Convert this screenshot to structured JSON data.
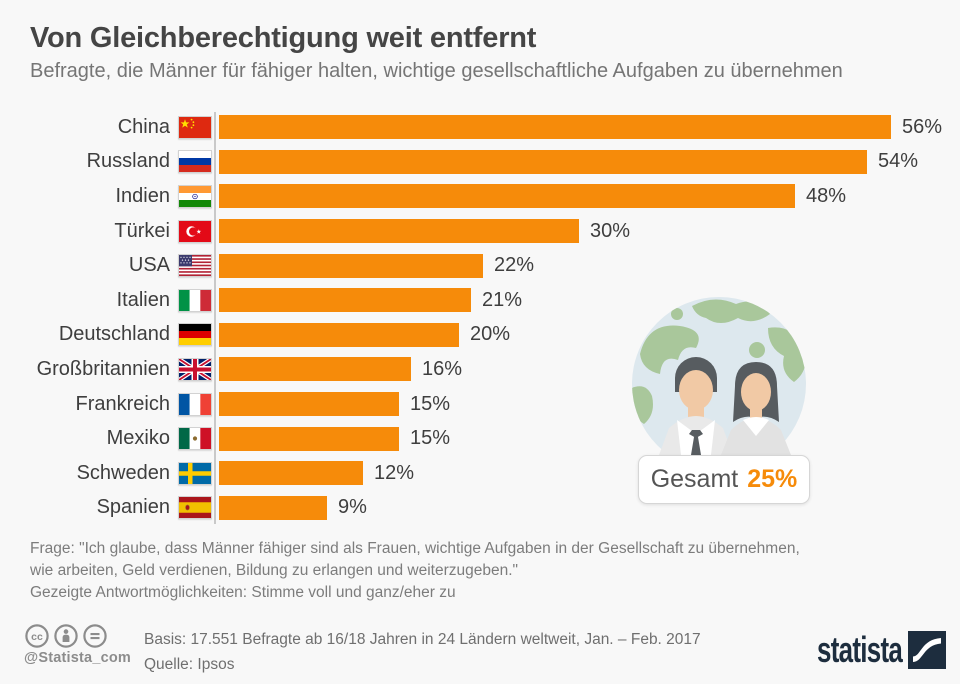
{
  "header": {
    "title": "Von Gleichberechtigung weit entfernt",
    "subtitle": "Befragte, die Männer für fähiger halten, wichtige gesellschaftliche Aufgaben zu übernehmen"
  },
  "chart_data": {
    "type": "bar",
    "orientation": "horizontal",
    "title": "Von Gleichberechtigung weit entfernt",
    "unit": "%",
    "categories": [
      "China",
      "Russland",
      "Indien",
      "Türkei",
      "USA",
      "Italien",
      "Deutschland",
      "Großbritannien",
      "Frankreich",
      "Mexiko",
      "Schweden",
      "Spanien"
    ],
    "values": [
      56,
      54,
      48,
      30,
      22,
      21,
      20,
      16,
      15,
      15,
      12,
      9
    ],
    "labels": [
      "56%",
      "54%",
      "48%",
      "30%",
      "22%",
      "21%",
      "20%",
      "16%",
      "15%",
      "15%",
      "12%",
      "9%"
    ],
    "flags": [
      "cn",
      "ru",
      "in",
      "tr",
      "us",
      "it",
      "de",
      "gb",
      "fr",
      "mx",
      "se",
      "es"
    ],
    "xlim": [
      0,
      60
    ],
    "grid": false,
    "legend": false,
    "bar_color": "#F68B0A",
    "total": {
      "label": "Gesamt",
      "value": "25%"
    }
  },
  "footnote": {
    "lines": [
      "Frage: \"Ich glaube, dass Männer fähiger sind als Frauen, wichtige Aufgaben in der Gesellschaft zu übernehmen,",
      "wie arbeiten, Geld verdienen, Bildung zu erlangen und weiterzugeben.\"",
      "Gezeigte Antwortmöglichkeiten: Stimme voll und ganz/eher zu"
    ]
  },
  "footer": {
    "handle": "@Statista_com",
    "basis": "Basis: 17.551 Befragte ab 16/18 Jahren in 24 Ländern weltweit, Jan. – Feb. 2017",
    "source": "Quelle: Ipsos",
    "brand": "statista",
    "license_icons": [
      "cc-icon",
      "attribution-icon",
      "no-derivatives-icon"
    ]
  },
  "colors": {
    "accent_orange": "#F68B0A",
    "brand_navy": "#1D2D3E",
    "background": "#F8F8F8",
    "globe_ocean": "#DDE8EE",
    "globe_land": "#A9C79B"
  }
}
